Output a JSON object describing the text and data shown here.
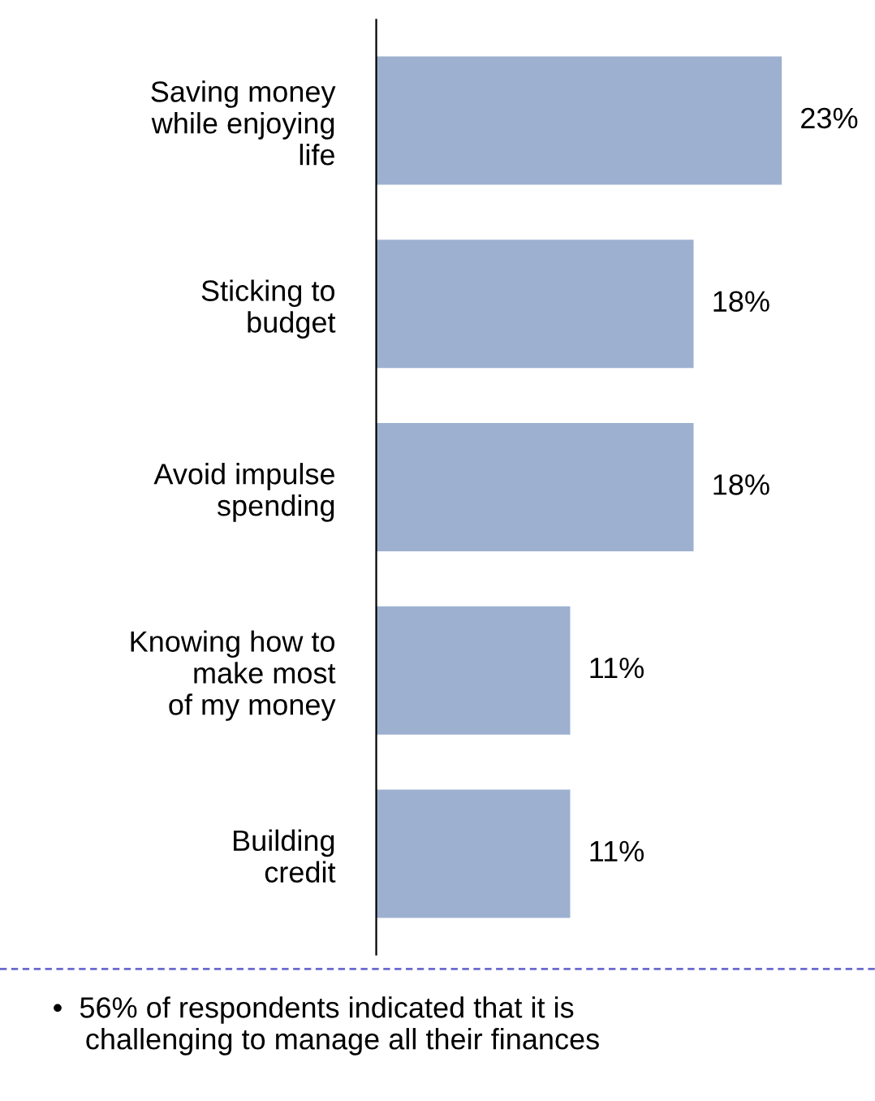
{
  "chart_data": {
    "type": "bar",
    "orientation": "horizontal",
    "categories": [
      "Saving money\nwhile enjoying\nlife",
      "Sticking to\nbudget",
      "Avoid impulse\nspending",
      "Knowing how to\nmake most\nof my money",
      "Building\ncredit"
    ],
    "values": [
      23,
      18,
      18,
      11,
      11
    ],
    "value_labels": [
      "23%",
      "18%",
      "18%",
      "11%",
      "11%"
    ],
    "color": "#9db0d0",
    "annotations": [
      "•  56% of respondents indicated that it is\n    challenging to manage all their finances"
    ]
  }
}
